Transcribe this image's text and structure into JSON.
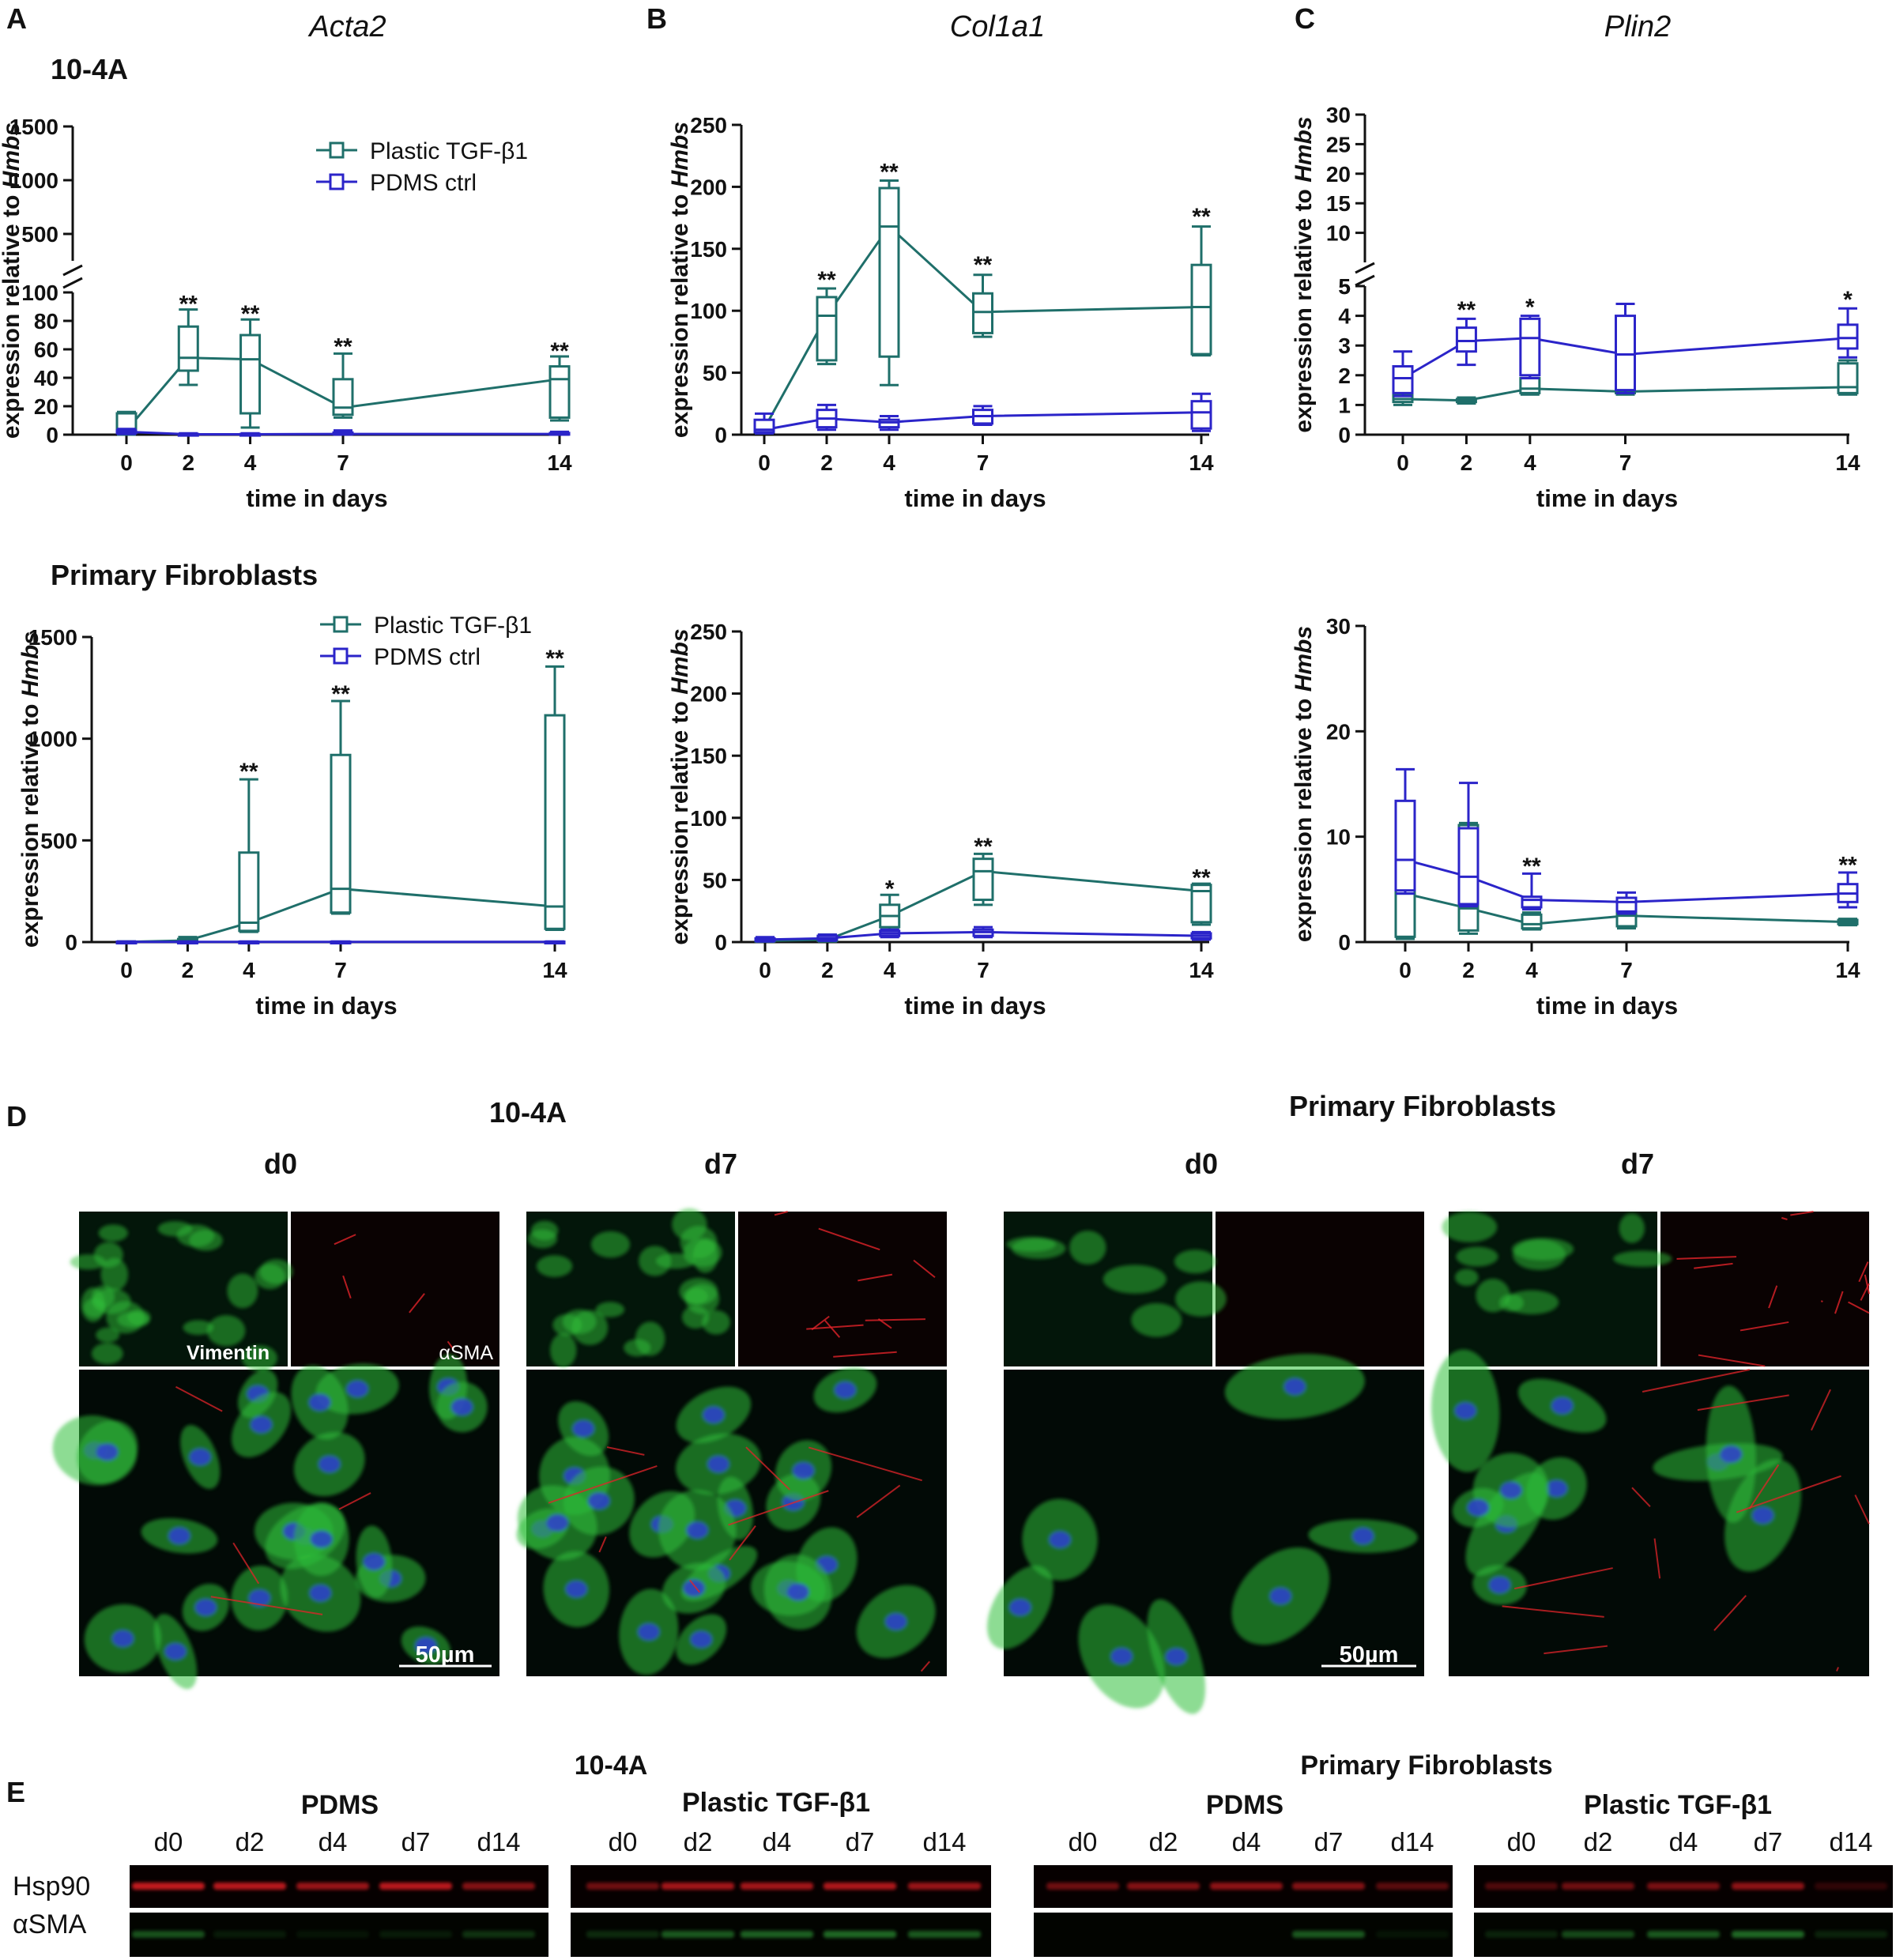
{
  "colors": {
    "tgf": "#1f6f6a",
    "pdms": "#2b24c9",
    "axis": "#111111",
    "green_stain": "#2fbf3a",
    "red_stain": "#e0242a",
    "blue_stain": "#2d45c8",
    "blot_red": "#d81f24",
    "blot_green": "#2f9c38"
  },
  "panel_letters": {
    "A": "A",
    "B": "B",
    "C": "C",
    "D": "D",
    "E": "E"
  },
  "gene_titles": {
    "A": "Acta2",
    "B": "Col1a1",
    "C": "Plin2"
  },
  "row_labels": {
    "top": "10-4A",
    "bottom": "Primary Fibroblasts"
  },
  "axis_text": {
    "ylabel_prefix": "expression relative to ",
    "ylabel_gene": "Hmbs",
    "xlabel": "time in days"
  },
  "legend": {
    "tgf": "Plastic TGF-β1",
    "pdms": "PDMS ctrl"
  },
  "chart_data": [
    {
      "id": "A-top",
      "type": "line",
      "title": "Acta2",
      "subtitle": "10-4A",
      "xlabel": "time in days",
      "ylabel": "expression relative to Hmbs",
      "x": [
        0,
        2,
        4,
        7,
        14
      ],
      "y_broken": true,
      "y_segments": [
        {
          "range": [
            0,
            100
          ],
          "ticks": [
            "0",
            "20",
            "40",
            "60",
            "80",
            "100"
          ]
        },
        {
          "range": [
            250,
            1500
          ],
          "ticks": [
            "500",
            "1000",
            "1500"
          ]
        }
      ],
      "legend_position": "top-right",
      "series": [
        {
          "name": "Plastic TGF-β1",
          "median": [
            3,
            54,
            53,
            19,
            39
          ],
          "q1": [
            2,
            45,
            15,
            14,
            12
          ],
          "q3": [
            15,
            76,
            70,
            39,
            48
          ],
          "min": [
            0,
            35,
            5,
            12,
            10
          ],
          "max": [
            16,
            88,
            81,
            57,
            55
          ]
        },
        {
          "name": "PDMS ctrl",
          "median": [
            2,
            0.3,
            0.3,
            0.5,
            0.5
          ],
          "q1": [
            1,
            0.2,
            0.2,
            0.3,
            0.3
          ],
          "q3": [
            3,
            0.5,
            0.5,
            1.5,
            1.2
          ],
          "min": [
            0.5,
            0.1,
            0.1,
            0.1,
            0.1
          ],
          "max": [
            4,
            1,
            1,
            3,
            2
          ]
        }
      ],
      "annotations": [
        {
          "x": 2,
          "text": "**",
          "y": 92
        },
        {
          "x": 4,
          "text": "**",
          "y": 85
        },
        {
          "x": 7,
          "text": "**",
          "y": 62
        },
        {
          "x": 14,
          "text": "**",
          "y": 59
        }
      ]
    },
    {
      "id": "B-top",
      "type": "line",
      "title": "Col1a1",
      "subtitle": "10-4A",
      "xlabel": "time in days",
      "ylabel": "expression relative to Hmbs",
      "x": [
        0,
        2,
        4,
        7,
        14
      ],
      "ylim": [
        0,
        250
      ],
      "yticks": [
        "0",
        "50",
        "100",
        "150",
        "200",
        "250"
      ],
      "series": [
        {
          "name": "Plastic TGF-β1",
          "median": [
            5,
            96,
            168,
            99,
            103
          ],
          "q1": [
            2,
            60,
            63,
            82,
            65
          ],
          "q3": [
            8,
            111,
            199,
            114,
            137
          ],
          "min": [
            1,
            57,
            40,
            79,
            64
          ],
          "max": [
            10,
            118,
            205,
            129,
            168
          ]
        },
        {
          "name": "PDMS ctrl",
          "median": [
            4,
            13,
            10,
            15,
            18
          ],
          "q1": [
            2,
            6,
            6,
            9,
            5
          ],
          "q3": [
            12,
            20,
            12,
            20,
            27
          ],
          "min": [
            1,
            4,
            4,
            8,
            3
          ],
          "max": [
            17,
            24,
            15,
            23,
            33
          ]
        }
      ],
      "annotations": [
        {
          "x": 2,
          "text": "**",
          "y": 125
        },
        {
          "x": 4,
          "text": "**",
          "y": 212
        },
        {
          "x": 7,
          "text": "**",
          "y": 137
        },
        {
          "x": 14,
          "text": "**",
          "y": 176
        }
      ]
    },
    {
      "id": "C-top",
      "type": "line",
      "title": "Plin2",
      "subtitle": "10-4A",
      "xlabel": "time in days",
      "ylabel": "expression relative to Hmbs",
      "x": [
        0,
        2,
        4,
        7,
        14
      ],
      "y_broken": true,
      "y_segments": [
        {
          "range": [
            0,
            5
          ],
          "ticks": [
            "0",
            "1",
            "2",
            "3",
            "4",
            "5"
          ]
        },
        {
          "range": [
            5,
            30
          ],
          "ticks": [
            "5",
            "10",
            "15",
            "20",
            "25",
            "30"
          ]
        }
      ],
      "series": [
        {
          "name": "Plastic TGF-β1",
          "median": [
            1.2,
            1.15,
            1.55,
            1.45,
            1.6
          ],
          "q1": [
            1.1,
            1.1,
            1.4,
            1.4,
            1.4
          ],
          "q3": [
            1.35,
            1.2,
            1.9,
            3.0,
            2.4
          ],
          "min": [
            1.0,
            1.05,
            1.35,
            1.35,
            1.35
          ],
          "max": [
            1.4,
            1.25,
            2.0,
            3.1,
            2.5
          ]
        },
        {
          "name": "PDMS ctrl",
          "median": [
            1.9,
            3.15,
            3.25,
            2.7,
            3.25
          ],
          "q1": [
            1.4,
            2.8,
            2.0,
            1.5,
            2.9
          ],
          "q3": [
            2.3,
            3.6,
            3.9,
            4.0,
            3.7
          ],
          "min": [
            1.3,
            2.35,
            1.9,
            1.4,
            2.6
          ],
          "max": [
            2.8,
            3.9,
            4.0,
            4.4,
            4.25
          ]
        }
      ],
      "annotations": [
        {
          "x": 2,
          "text": "**",
          "y": 4.2
        },
        {
          "x": 4,
          "text": "*",
          "y": 4.3
        },
        {
          "x": 14,
          "text": "*",
          "y": 4.55
        }
      ]
    },
    {
      "id": "A-bottom",
      "type": "line",
      "title": "Acta2",
      "subtitle": "Primary Fibroblasts",
      "xlabel": "time in days",
      "ylabel": "expression relative to Hmbs",
      "x": [
        0,
        2,
        4,
        7,
        14
      ],
      "ylim": [
        0,
        1500
      ],
      "yticks": [
        "0",
        "500",
        "1000",
        "1500"
      ],
      "legend_position": "top-right",
      "series": [
        {
          "name": "Plastic TGF-β1",
          "median": [
            1,
            8,
            95,
            262,
            175
          ],
          "q1": [
            1,
            5,
            55,
            145,
            65
          ],
          "q3": [
            2,
            15,
            440,
            920,
            1115
          ],
          "min": [
            0.5,
            3,
            50,
            140,
            60
          ],
          "max": [
            3,
            25,
            800,
            1185,
            1355
          ]
        },
        {
          "name": "PDMS ctrl",
          "median": [
            1,
            1,
            1,
            1,
            1
          ],
          "q1": [
            0.5,
            0.5,
            0.5,
            0.5,
            0.5
          ],
          "q3": [
            2,
            2,
            2,
            2,
            2
          ],
          "min": [
            0.3,
            0.3,
            0.3,
            0.3,
            0.3
          ],
          "max": [
            3,
            3,
            3,
            3,
            3
          ]
        }
      ],
      "annotations": [
        {
          "x": 4,
          "text": "**",
          "y": 840
        },
        {
          "x": 7,
          "text": "**",
          "y": 1220
        },
        {
          "x": 14,
          "text": "**",
          "y": 1395
        }
      ]
    },
    {
      "id": "B-bottom",
      "type": "line",
      "title": "Col1a1",
      "subtitle": "Primary Fibroblasts",
      "xlabel": "time in days",
      "ylabel": "expression relative to Hmbs",
      "x": [
        0,
        2,
        4,
        7,
        14
      ],
      "ylim": [
        0,
        250
      ],
      "yticks": [
        "0",
        "50",
        "100",
        "150",
        "200",
        "250"
      ],
      "series": [
        {
          "name": "Plastic TGF-β1",
          "median": [
            1,
            2,
            21,
            57,
            41
          ],
          "q1": [
            0.5,
            1,
            12,
            34,
            16
          ],
          "q3": [
            2,
            4,
            30,
            67,
            46
          ],
          "min": [
            0.2,
            0.5,
            10,
            30,
            14
          ],
          "max": [
            3,
            6,
            38,
            71,
            47
          ]
        },
        {
          "name": "PDMS ctrl",
          "median": [
            2,
            3,
            7,
            8,
            5
          ],
          "q1": [
            1,
            2,
            5,
            5,
            3
          ],
          "q3": [
            3,
            5,
            9,
            10,
            7
          ],
          "min": [
            0.5,
            1,
            4,
            4,
            2
          ],
          "max": [
            4,
            6,
            10,
            12,
            8
          ]
        }
      ],
      "annotations": [
        {
          "x": 4,
          "text": "*",
          "y": 43
        },
        {
          "x": 7,
          "text": "**",
          "y": 77
        },
        {
          "x": 14,
          "text": "**",
          "y": 52
        }
      ]
    },
    {
      "id": "C-bottom",
      "type": "line",
      "title": "Plin2",
      "subtitle": "Primary Fibroblasts",
      "xlabel": "time in days",
      "ylabel": "expression relative to Hmbs",
      "x": [
        0,
        2,
        4,
        7,
        14
      ],
      "ylim": [
        0,
        30
      ],
      "yticks": [
        "0",
        "10",
        "20",
        "30"
      ],
      "series": [
        {
          "name": "Plastic TGF-β1",
          "median": [
            4.6,
            3.2,
            1.7,
            2.5,
            1.9
          ],
          "q1": [
            0.5,
            1.1,
            1.3,
            1.5,
            1.7
          ],
          "q3": [
            5.3,
            11.1,
            2.6,
            3.1,
            2.1
          ],
          "min": [
            0.3,
            0.8,
            1.2,
            1.3,
            1.6
          ],
          "max": [
            5.4,
            11.3,
            2.8,
            3.4,
            2.2
          ]
        },
        {
          "name": "PDMS ctrl",
          "median": [
            7.8,
            6.2,
            4.0,
            3.8,
            4.6
          ],
          "q1": [
            4.9,
            3.6,
            3.3,
            2.9,
            3.8
          ],
          "q3": [
            13.4,
            10.8,
            4.3,
            4.2,
            5.5
          ],
          "min": [
            4.6,
            3.4,
            3.1,
            2.7,
            3.3
          ],
          "max": [
            16.4,
            15.1,
            6.5,
            4.7,
            6.6
          ]
        }
      ],
      "annotations": [
        {
          "x": 4,
          "text": "**",
          "y": 7.2
        },
        {
          "x": 14,
          "text": "**",
          "y": 7.3
        }
      ]
    }
  ],
  "panel_D": {
    "groups": [
      "10-4A",
      "Primary Fibroblasts"
    ],
    "timepoints": [
      "d0",
      "d7",
      "d0",
      "d7"
    ],
    "stain_labels": {
      "green": "Vimentin",
      "red": "αSMA"
    },
    "scale_bar": "50µm"
  },
  "panel_E": {
    "groups": [
      "10-4A",
      "Primary Fibroblasts"
    ],
    "conditions": [
      "PDMS",
      "Plastic TGF-β1",
      "PDMS",
      "Plastic TGF-β1"
    ],
    "lanes": [
      "d0",
      "d2",
      "d4",
      "d7",
      "d14"
    ],
    "rows": [
      "Hsp90",
      "αSMA"
    ],
    "bands": [
      {
        "hsp90": [
          0.9,
          0.85,
          0.7,
          0.85,
          0.6
        ],
        "asma": [
          0.5,
          0.15,
          0.1,
          0.15,
          0.3
        ]
      },
      {
        "hsp90": [
          0.5,
          0.75,
          0.75,
          0.8,
          0.7
        ],
        "asma": [
          0.25,
          0.55,
          0.6,
          0.65,
          0.55
        ]
      },
      {
        "hsp90": [
          0.5,
          0.6,
          0.65,
          0.6,
          0.4
        ],
        "asma": [
          0.0,
          0.0,
          0.0,
          0.55,
          0.1
        ]
      },
      {
        "hsp90": [
          0.35,
          0.5,
          0.55,
          0.65,
          0.2
        ],
        "asma": [
          0.2,
          0.45,
          0.55,
          0.65,
          0.2
        ]
      }
    ]
  }
}
